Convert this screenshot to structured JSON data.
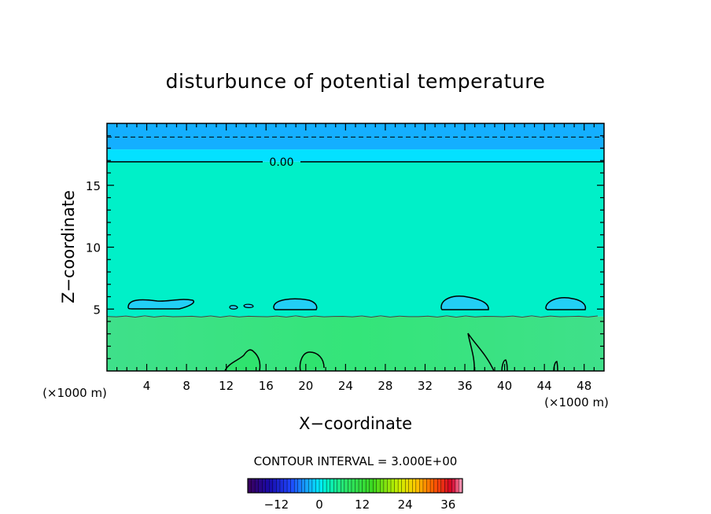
{
  "chart_data": {
    "type": "heatmap",
    "title": "disturbunce of potential temperature",
    "xlabel": "X−coordinate",
    "ylabel": "Z−coordinate",
    "x_unit": "(×1000 m)",
    "xlim": [
      0,
      50
    ],
    "ylim": [
      0,
      20
    ],
    "x_ticks": [
      "4",
      "8",
      "12",
      "16",
      "20",
      "24",
      "28",
      "32",
      "36",
      "40",
      "44",
      "48"
    ],
    "y_ticks": [
      "5",
      "10",
      "15"
    ],
    "contour_label": "0.00",
    "contour_interval_text": "CONTOUR INTERVAL = 3.000E+00",
    "colorbar": {
      "range": [
        -20,
        40
      ],
      "ticks": [
        "−12",
        "0",
        "12",
        "24",
        "36"
      ],
      "tick_values": [
        -12,
        0,
        12,
        24,
        36
      ]
    },
    "layers": [
      {
        "z_from": 0,
        "z_to": 4.4,
        "value": 7
      },
      {
        "z_from": 4.4,
        "z_to": 16.9,
        "value": 2
      },
      {
        "z_from": 16.9,
        "z_to": 17.9,
        "value": -0.5
      },
      {
        "z_from": 17.9,
        "z_to": 20,
        "value": -3
      }
    ],
    "contours": [
      {
        "kind": "level",
        "z": 16.9,
        "value": 0
      },
      {
        "kind": "dashed",
        "z": 18.9
      },
      {
        "kind": "boundary",
        "z": 4.4
      }
    ]
  }
}
